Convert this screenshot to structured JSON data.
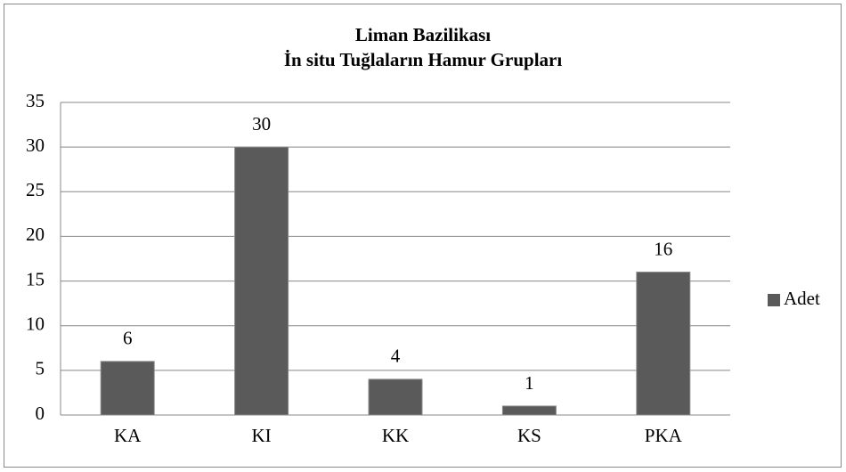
{
  "chart_data": {
    "type": "bar",
    "title": "Liman Bazilikası",
    "subtitle": "İn situ Tuğlaların Hamur Grupları",
    "categories": [
      "KA",
      "KI",
      "KK",
      "KS",
      "PKA"
    ],
    "series": [
      {
        "name": "Adet",
        "color": "#5a5a5a",
        "values": [
          6,
          30,
          4,
          1,
          16
        ]
      }
    ],
    "ylim": [
      0,
      35
    ],
    "yticks": [
      0,
      5,
      10,
      15,
      20,
      25,
      30,
      35
    ],
    "grid": true,
    "legend": "right"
  }
}
